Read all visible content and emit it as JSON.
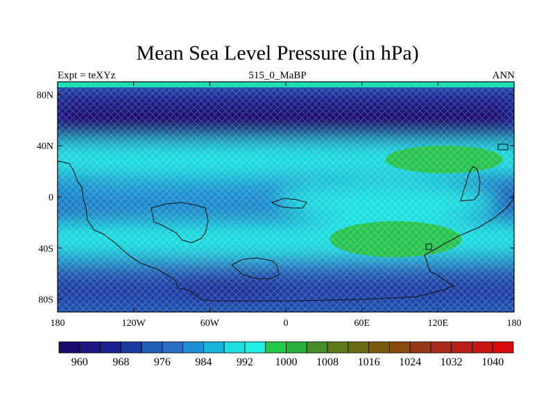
{
  "plot": {
    "title": "Mean Sea Level Pressure (in hPa)",
    "left_label": "Expt = teXYz",
    "center_label": "515_0_MaBP",
    "right_label": "ANN"
  },
  "axes": {
    "x_ticks": [
      {
        "value": -180,
        "label": "180"
      },
      {
        "value": -120,
        "label": "120W"
      },
      {
        "value": -60,
        "label": "60W"
      },
      {
        "value": 0,
        "label": "0"
      },
      {
        "value": 60,
        "label": "60E"
      },
      {
        "value": 120,
        "label": "120E"
      },
      {
        "value": 180,
        "label": "180"
      }
    ],
    "y_ticks": [
      {
        "value": 80,
        "label": "80N"
      },
      {
        "value": 40,
        "label": "40N"
      },
      {
        "value": 0,
        "label": "0"
      },
      {
        "value": -40,
        "label": "40S"
      },
      {
        "value": -80,
        "label": "80S"
      }
    ],
    "lon_range": [
      -180,
      180
    ],
    "lat_range": [
      -90,
      90
    ]
  },
  "colorbar": {
    "labels": [
      "960",
      "968",
      "976",
      "984",
      "992",
      "1000",
      "1008",
      "1016",
      "1024",
      "1032",
      "1040"
    ],
    "colors": [
      "#1a0a6e",
      "#1c1780",
      "#1a2090",
      "#1a3aa0",
      "#1f5fb8",
      "#2a6fc2",
      "#1e8fd0",
      "#18b4dc",
      "#1fe0e0",
      "#22f0e6",
      "#22c848",
      "#28b03a",
      "#4a8c2a",
      "#5e7a1a",
      "#6a6a14",
      "#7a5a10",
      "#8a4a10",
      "#983818",
      "#a82a1a",
      "#b82018",
      "#c81414",
      "#d80a0a"
    ]
  },
  "fill_colors": {
    "deep_low": "#1a1e82",
    "low": "#1a3aa0",
    "mid_low": "#2a6fc2",
    "mid": "#1e8fd0",
    "cyan": "#18e6e0",
    "green": "#28c040"
  }
}
